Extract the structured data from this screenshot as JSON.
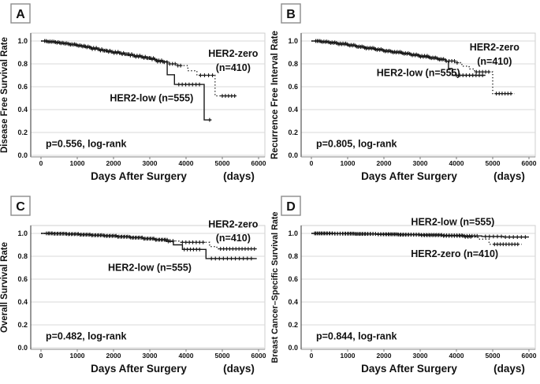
{
  "figure": {
    "kind": "kaplan-meier-4panel",
    "curve_color": "#1a1a1a",
    "grid_color": "#d9d9d9",
    "axis_color": "#8a8a8a",
    "border_color": "#cfcfcf"
  },
  "shared_axis": {
    "x_title": "Days After Surgery",
    "x_unit_label": "(days)",
    "x_ticks": [
      0,
      1000,
      2000,
      3000,
      4000,
      5000,
      6000
    ],
    "x_max": 6000,
    "y_tick_labels": [
      "0.0",
      "0.2",
      "0.4",
      "0.6",
      "0.8",
      "1.0"
    ],
    "y_ticks": [
      0,
      0.2,
      0.4,
      0.6,
      0.8,
      1.0
    ],
    "ylim": [
      0,
      1.0
    ],
    "grid": true,
    "legend_position": "inline-annotations"
  },
  "chart_data": [
    {
      "type": "line",
      "panel_letter": "A",
      "title": "",
      "ylabel": "Disease Free Survival Rate",
      "xlabel": "Days After Surgery",
      "p_value_label": "p=0.556, log-rank",
      "annotations": [
        {
          "text": "HER2-zero",
          "x": 5300,
          "y": 0.89
        },
        {
          "text": "(n=410)",
          "x": 5300,
          "y": 0.765
        },
        {
          "text": "HER2-low (n=555)",
          "x": 3050,
          "y": 0.5
        }
      ],
      "series": [
        {
          "name": "HER2-zero (n=410)",
          "style": "dotted",
          "points": [
            [
              0,
              1.0
            ],
            [
              150,
              0.995
            ],
            [
              350,
              0.99
            ],
            [
              550,
              0.98
            ],
            [
              750,
              0.972
            ],
            [
              950,
              0.962
            ],
            [
              1150,
              0.952
            ],
            [
              1350,
              0.94
            ],
            [
              1550,
              0.928
            ],
            [
              1750,
              0.915
            ],
            [
              1950,
              0.905
            ],
            [
              2150,
              0.895
            ],
            [
              2350,
              0.885
            ],
            [
              2550,
              0.872
            ],
            [
              2750,
              0.862
            ],
            [
              2950,
              0.85
            ],
            [
              3150,
              0.83
            ],
            [
              3350,
              0.815
            ],
            [
              3550,
              0.8
            ],
            [
              3750,
              0.785
            ],
            [
              4050,
              0.74
            ],
            [
              4300,
              0.7
            ],
            [
              4800,
              0.52
            ],
            [
              5400,
              0.52
            ]
          ],
          "censor_ranges": [
            [
              100,
              3900,
              75
            ],
            [
              4400,
              4750,
              110
            ],
            [
              5000,
              5350,
              85
            ]
          ],
          "censor_days": []
        },
        {
          "name": "HER2-low (n=555)",
          "style": "solid",
          "points": [
            [
              0,
              1.0
            ],
            [
              200,
              0.993
            ],
            [
              400,
              0.985
            ],
            [
              600,
              0.977
            ],
            [
              800,
              0.968
            ],
            [
              1000,
              0.958
            ],
            [
              1200,
              0.945
            ],
            [
              1400,
              0.93
            ],
            [
              1600,
              0.917
            ],
            [
              1800,
              0.905
            ],
            [
              2000,
              0.895
            ],
            [
              2200,
              0.885
            ],
            [
              2400,
              0.873
            ],
            [
              2600,
              0.862
            ],
            [
              2800,
              0.852
            ],
            [
              3000,
              0.84
            ],
            [
              3200,
              0.82
            ],
            [
              3480,
              0.705
            ],
            [
              3680,
              0.62
            ],
            [
              4500,
              0.31
            ],
            [
              4700,
              0.31
            ]
          ],
          "censor_ranges": [
            [
              140,
              3380,
              75
            ],
            [
              3800,
              4450,
              95
            ]
          ],
          "censor_days": [
            4650
          ]
        }
      ]
    },
    {
      "type": "line",
      "panel_letter": "B",
      "title": "",
      "ylabel": "Recurrence Free Interval Rate",
      "xlabel": "Days After Surgery",
      "p_value_label": "p=0.805, log-rank",
      "annotations": [
        {
          "text": "HER2-zero",
          "x": 5050,
          "y": 0.945
        },
        {
          "text": "(n=410)",
          "x": 5050,
          "y": 0.82
        },
        {
          "text": "HER2-low (n=555)",
          "x": 2950,
          "y": 0.72
        }
      ],
      "series": [
        {
          "name": "HER2-zero (n=410)",
          "style": "dotted",
          "points": [
            [
              0,
              1.0
            ],
            [
              200,
              0.995
            ],
            [
              450,
              0.988
            ],
            [
              700,
              0.978
            ],
            [
              950,
              0.966
            ],
            [
              1200,
              0.952
            ],
            [
              1450,
              0.94
            ],
            [
              1700,
              0.928
            ],
            [
              1950,
              0.915
            ],
            [
              2200,
              0.905
            ],
            [
              2450,
              0.893
            ],
            [
              2700,
              0.882
            ],
            [
              2950,
              0.87
            ],
            [
              3200,
              0.855
            ],
            [
              3450,
              0.842
            ],
            [
              3700,
              0.825
            ],
            [
              3950,
              0.81
            ],
            [
              4150,
              0.78
            ],
            [
              4350,
              0.755
            ],
            [
              4500,
              0.73
            ],
            [
              5000,
              0.54
            ],
            [
              5600,
              0.54
            ]
          ],
          "censor_ranges": [
            [
              120,
              4050,
              75
            ],
            [
              4550,
              4950,
              85
            ],
            [
              5100,
              5550,
              80
            ]
          ],
          "censor_days": []
        },
        {
          "name": "HER2-low (n=555)",
          "style": "solid",
          "points": [
            [
              0,
              1.0
            ],
            [
              250,
              0.992
            ],
            [
              500,
              0.983
            ],
            [
              750,
              0.972
            ],
            [
              1000,
              0.96
            ],
            [
              1250,
              0.948
            ],
            [
              1500,
              0.935
            ],
            [
              1750,
              0.922
            ],
            [
              2000,
              0.91
            ],
            [
              2250,
              0.9
            ],
            [
              2500,
              0.888
            ],
            [
              2750,
              0.875
            ],
            [
              3000,
              0.862
            ],
            [
              3250,
              0.85
            ],
            [
              3500,
              0.838
            ],
            [
              3700,
              0.822
            ],
            [
              3780,
              0.76
            ],
            [
              3880,
              0.7
            ],
            [
              4800,
              0.7
            ]
          ],
          "censor_ranges": [
            [
              160,
              3650,
              75
            ],
            [
              4000,
              4750,
              90
            ]
          ],
          "censor_days": []
        }
      ]
    },
    {
      "type": "line",
      "panel_letter": "C",
      "title": "",
      "ylabel": "Overall Survival Rate",
      "xlabel": "Days After Surgery",
      "p_value_label": "p=0.482, log-rank",
      "annotations": [
        {
          "text": "HER2-zero",
          "x": 5300,
          "y": 1.08
        },
        {
          "text": "(n=410)",
          "x": 5300,
          "y": 0.96
        },
        {
          "text": "HER2-low (n=555)",
          "x": 3000,
          "y": 0.7
        }
      ],
      "series": [
        {
          "name": "HER2-zero (n=410)",
          "style": "dotted",
          "points": [
            [
              0,
              1.0
            ],
            [
              350,
              0.997
            ],
            [
              700,
              0.993
            ],
            [
              1050,
              0.988
            ],
            [
              1400,
              0.983
            ],
            [
              1750,
              0.977
            ],
            [
              2100,
              0.97
            ],
            [
              2450,
              0.962
            ],
            [
              2800,
              0.953
            ],
            [
              3150,
              0.944
            ],
            [
              3500,
              0.934
            ],
            [
              3800,
              0.922
            ],
            [
              4650,
              0.885
            ],
            [
              4850,
              0.865
            ],
            [
              6000,
              0.865
            ]
          ],
          "censor_ranges": [
            [
              200,
              3700,
              80
            ],
            [
              3900,
              4550,
              95
            ],
            [
              4950,
              5900,
              85
            ]
          ],
          "censor_days": []
        },
        {
          "name": "HER2-low (n=555)",
          "style": "solid",
          "points": [
            [
              0,
              1.0
            ],
            [
              350,
              0.998
            ],
            [
              700,
              0.995
            ],
            [
              1050,
              0.99
            ],
            [
              1400,
              0.985
            ],
            [
              1750,
              0.979
            ],
            [
              2100,
              0.972
            ],
            [
              2450,
              0.964
            ],
            [
              2800,
              0.955
            ],
            [
              3150,
              0.945
            ],
            [
              3450,
              0.93
            ],
            [
              3650,
              0.9
            ],
            [
              3900,
              0.86
            ],
            [
              4550,
              0.78
            ],
            [
              5950,
              0.78
            ]
          ],
          "censor_ranges": [
            [
              150,
              3550,
              80
            ],
            [
              3950,
              4450,
              85
            ],
            [
              4700,
              5850,
              110
            ]
          ],
          "censor_days": []
        }
      ]
    },
    {
      "type": "line",
      "panel_letter": "D",
      "title": "",
      "ylabel": "Breast Cancer–Specific Survival Rate",
      "xlabel": "Days After Surgery",
      "p_value_label": "p=0.844, log-rank",
      "annotations": [
        {
          "text": "HER2-low (n=555)",
          "x": 3900,
          "y": 1.1
        },
        {
          "text": "HER2-zero (n=410)",
          "x": 3950,
          "y": 0.82
        }
      ],
      "series": [
        {
          "name": "HER2-zero (n=410)",
          "style": "dotted",
          "points": [
            [
              0,
              1.0
            ],
            [
              600,
              0.998
            ],
            [
              1200,
              0.995
            ],
            [
              1800,
              0.992
            ],
            [
              2400,
              0.988
            ],
            [
              3000,
              0.984
            ],
            [
              3600,
              0.978
            ],
            [
              4200,
              0.97
            ],
            [
              4600,
              0.95
            ],
            [
              4900,
              0.905
            ],
            [
              5800,
              0.905
            ]
          ],
          "censor_ranges": [
            [
              120,
              4400,
              75
            ],
            [
              5050,
              5750,
              80
            ]
          ],
          "censor_days": []
        },
        {
          "name": "HER2-low (n=555)",
          "style": "solid",
          "points": [
            [
              0,
              1.0
            ],
            [
              600,
              0.998
            ],
            [
              1200,
              0.996
            ],
            [
              1800,
              0.993
            ],
            [
              2400,
              0.99
            ],
            [
              3000,
              0.987
            ],
            [
              3600,
              0.983
            ],
            [
              4200,
              0.978
            ],
            [
              4700,
              0.973
            ],
            [
              5300,
              0.968
            ],
            [
              6000,
              0.968
            ]
          ],
          "censor_ranges": [
            [
              90,
              4600,
              70
            ],
            [
              4800,
              5980,
              110
            ]
          ],
          "censor_days": []
        }
      ]
    }
  ]
}
